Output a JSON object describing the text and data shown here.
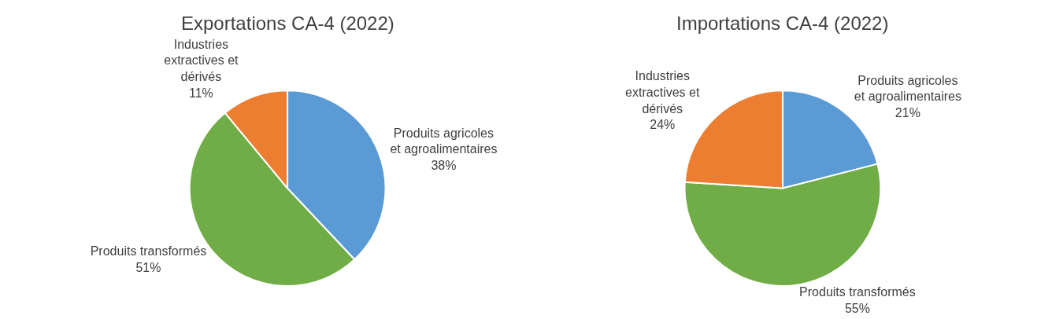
{
  "chart_data": [
    {
      "type": "pie",
      "title": "Exportations CA-4 (2022)",
      "categories": [
        "Produits agricoles et agroalimentaires",
        "Produits transformés",
        "Industries extractives et dérivés"
      ],
      "values": [
        38,
        51,
        11
      ],
      "value_labels": [
        "38%",
        "51%",
        "11%"
      ],
      "colors": [
        "#5b9bd5",
        "#70ad47",
        "#ed7d31"
      ],
      "legend": false
    },
    {
      "type": "pie",
      "title": "Importations CA-4 (2022)",
      "categories": [
        "Produits agricoles et agroalimentaires",
        "Produits transformés",
        "Industries extractives et dérivés"
      ],
      "values": [
        21,
        55,
        24
      ],
      "value_labels": [
        "21%",
        "55%",
        "24%"
      ],
      "colors": [
        "#5b9bd5",
        "#70ad47",
        "#ed7d31"
      ],
      "legend": false
    }
  ]
}
